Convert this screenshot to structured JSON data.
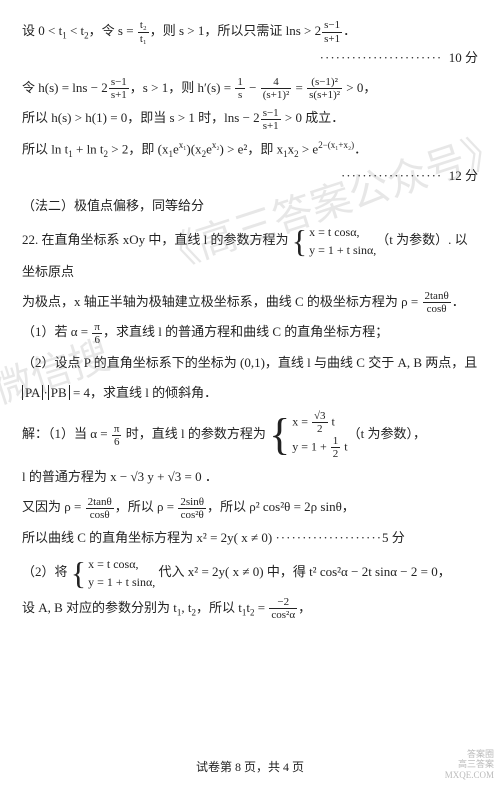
{
  "l1_a": "设 0 < t",
  "l1_b": " < t",
  "l1_c": "，令 s = ",
  "l1_d": "，则 s > 1，所以只需证 lns > 2",
  "l1_e": "．",
  "l1_dots": "·······················",
  "l1_score": "10 分",
  "frac_t2": "t₂",
  "frac_t1": "t₁",
  "frac_sm1": "s−1",
  "frac_sp1": "s+1",
  "l2_a": "令 h(s) = lns − 2",
  "l2_b": "，s > 1，则 h′(s) = ",
  "l2_c": " − ",
  "l2_d": " = ",
  "l2_e": " > 0，",
  "frac_1": "1",
  "frac_s": "s",
  "frac_4": "4",
  "frac_sp1sq": "(s+1)²",
  "frac_sm1sq": "(s−1)²",
  "frac_ssq": "s(s+1)²",
  "l3_a": "所以 h(s) > h(1) = 0，即当 s > 1 时，lns − 2",
  "l3_b": " > 0 成立．",
  "l4_a": "所以 ln t",
  "l4_b": " + ln t",
  "l4_c": " > 2，即 (x",
  "l4_d": "e",
  "l4_e": ")(x",
  "l4_f": ") > e²，即 x",
  "l4_g": "x",
  "l4_h": " > e",
  "l4_i": "．",
  "l4_exp": "2−(x₁+x₂)",
  "l4_dots": "···················",
  "l4_score": "12 分",
  "l5": "（法二）极值点偏移，同等给分",
  "l6_a": "22. 在直角坐标系 xOy 中，直线 l 的参数方程为 ",
  "l6_sys1": "x = t cosα,",
  "l6_sys2": "y = 1 + t sinα,",
  "l6_b": "（t 为参数）. 以坐标原点",
  "l7_a": "为极点，x 轴正半轴为极轴建立极坐标系，曲线 C 的极坐标方程为 ρ = ",
  "l7_b": "．",
  "frac_2tan": "2tanθ",
  "frac_cos": "cosθ",
  "l8_a": "（1）若 α = ",
  "l8_b": "，求直线 l 的普通方程和曲线 C 的直角坐标方程；",
  "frac_pi": "π",
  "frac_6": "6",
  "l9": "（2）设点 P 的直角坐标系下的坐标为 (0,1)，直线 l 与曲线 C 交于 A, B 两点，且",
  "l10_a": "PA",
  "l10_b": "·",
  "l10_c": "PB",
  "l10_d": " = 4，求直线 l 的倾斜角．",
  "l11_a": "解：（1）当 α = ",
  "l11_b": " 时，直线 l 的参数方程为 ",
  "l11_sys1a": "x = ",
  "l11_sys1b": " t",
  "l11_sys2a": "y = 1 + ",
  "l11_sys2b": " t",
  "l11_c": "（t 为参数），",
  "frac_r3": "√3",
  "frac_2": "2",
  "frac_1b": "1",
  "l12": "l 的普通方程为 x − √3 y + √3 = 0 ．",
  "l13_a": "又因为 ρ = ",
  "l13_b": "，所以 ρ = ",
  "l13_c": "，所以 ρ² cos²θ = 2ρ sinθ，",
  "frac_2sin": "2sinθ",
  "frac_cos2": "cos²θ",
  "l14_a": "所以曲线 C 的直角坐标方程为 x² = 2y( x ≠ 0) ",
  "l14_dots": "····················",
  "l14_score": "5 分",
  "l15_a": "（2）将 ",
  "l15_sys1": "x = t cosα,",
  "l15_sys2": "y = 1 + t sinα,",
  "l15_b": " 代入 x² = 2y( x ≠ 0) 中，得 t² cos²α − 2t sinα − 2 = 0，",
  "l16_a": "设 A, B 对应的参数分别为 t",
  "l16_b": ", t",
  "l16_c": "，所以 t",
  "l16_d": "t",
  "l16_e": " = ",
  "l16_f": "，",
  "frac_m2": "−2",
  "frac_cos2a": "cos²α",
  "pagefoot": "试卷第 8 页，共 4 页",
  "wm_text1": "《高三答案公众号》",
  "wm_text2": "微信搜",
  "corner1": "答案圈",
  "corner2": "高三答案",
  "corner3": "MXQE.COM"
}
